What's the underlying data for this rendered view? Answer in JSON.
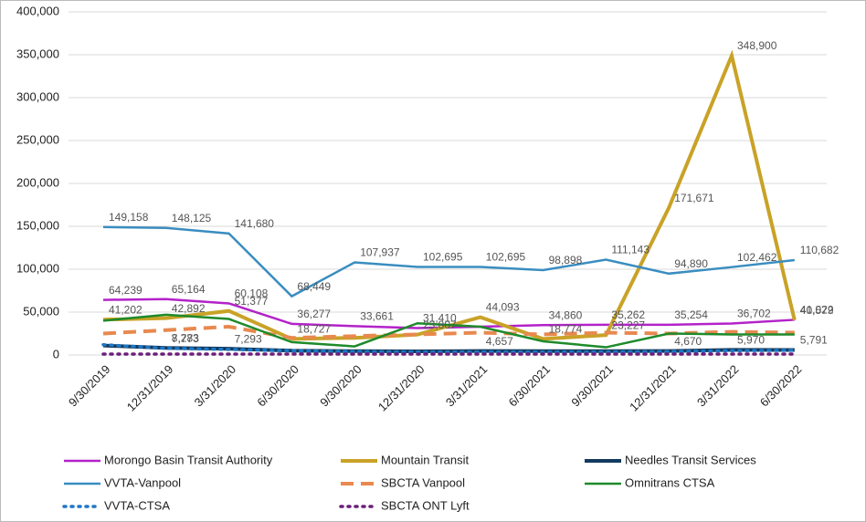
{
  "chart_data": {
    "type": "line",
    "categories": [
      "9/30/2019",
      "12/31/2019",
      "3/31/2020",
      "6/30/2020",
      "9/30/2020",
      "12/31/2020",
      "3/31/2021",
      "6/30/2021",
      "9/30/2021",
      "12/31/2021",
      "3/31/2022",
      "6/30/2022"
    ],
    "ylim": [
      0,
      400000
    ],
    "yticks": [
      0,
      {
        "value": 50000,
        "label": "50,000"
      },
      {
        "value": 100000,
        "label": "100,000"
      },
      {
        "value": 150000,
        "label": "150,000"
      },
      {
        "value": 200000,
        "label": "200,000"
      },
      {
        "value": 250000,
        "label": "250,000"
      },
      {
        "value": 300000,
        "label": "300,000"
      },
      {
        "value": 350000,
        "label": "350,000"
      },
      {
        "value": 400000,
        "label": "400,000"
      }
    ],
    "grid": true,
    "legend": "bottom",
    "series": [
      {
        "name": "Morongo Basin Transit Authority",
        "color": "#b322c9",
        "dash": "solid",
        "width": 2.5,
        "values": [
          64239,
          65164,
          60108,
          36277,
          33661,
          31410,
          33000,
          34860,
          35262,
          35254,
          36702,
          41022
        ],
        "value_labels": [
          "64,239",
          "65,164",
          "60,108",
          "36,277",
          "33,661",
          "31,410",
          null,
          "34,860",
          "35,262",
          "35,254",
          "36,702",
          "41,022"
        ]
      },
      {
        "name": "Mountain Transit",
        "color": "#c9a227",
        "dash": "solid",
        "width": 4,
        "values": [
          41202,
          42892,
          51377,
          18727,
          20000,
          23807,
          44093,
          18774,
          23227,
          171671,
          348900,
          40579
        ],
        "value_labels": [
          "41,202",
          "42,892",
          "51,377",
          "18,727",
          null,
          "23,807",
          "44,093",
          "18,774",
          "23,227",
          "171,671",
          "348,900",
          "40,579"
        ]
      },
      {
        "name": "Needles Transit Services",
        "color": "#123a5e",
        "dash": "solid",
        "width": 4,
        "values": [
          11000,
          8283,
          7293,
          5000,
          4500,
          4300,
          4657,
          4500,
          4500,
          4670,
          5970,
          5791
        ],
        "value_labels": [
          null,
          "8,283",
          "7,293",
          null,
          null,
          null,
          "4,657",
          null,
          null,
          "4,670",
          "5,970",
          "5,791"
        ]
      },
      {
        "name": "VVTA-Vanpool",
        "color": "#3a8dc0",
        "dash": "solid",
        "width": 2.5,
        "values": [
          149158,
          148125,
          141680,
          68449,
          107937,
          102695,
          102695,
          98898,
          111143,
          94890,
          102462,
          110682
        ],
        "value_labels": [
          "149,158",
          "148,125",
          "141,680",
          "68,449",
          "107,937",
          "102,695",
          "102,695",
          "98,898",
          "111,143",
          "94,890",
          "102,462",
          "110,682"
        ]
      },
      {
        "name": "SBCTA Vanpool",
        "color": "#e8894f",
        "dash": "dashed",
        "width": 4,
        "values": [
          25000,
          29000,
          33000,
          20000,
          22000,
          24000,
          26000,
          24000,
          26000,
          25000,
          27000,
          26000
        ]
      },
      {
        "name": "Omnitrans CTSA",
        "color": "#1e8a2a",
        "dash": "solid",
        "width": 2.5,
        "values": [
          40000,
          47000,
          42000,
          15000,
          10000,
          37000,
          33000,
          16000,
          9000,
          25000,
          24000,
          24000
        ]
      },
      {
        "name": "VVTA-CTSA",
        "color": "#1f77c4",
        "dash": "dotted",
        "width": 3.5,
        "values": [
          12000,
          7773,
          6500,
          5000,
          4000,
          3500,
          3500,
          3500,
          3500,
          4000,
          5000,
          5500
        ],
        "value_labels": [
          null,
          "7,773",
          null,
          null,
          null,
          null,
          null,
          null,
          null,
          null,
          null,
          null
        ]
      },
      {
        "name": "SBCTA ONT Lyft",
        "color": "#6b1e7a",
        "dash": "dotted",
        "width": 3.5,
        "values": [
          1000,
          1000,
          1000,
          1000,
          1000,
          1000,
          1000,
          1000,
          1000,
          1000,
          1000,
          1000
        ]
      }
    ]
  }
}
